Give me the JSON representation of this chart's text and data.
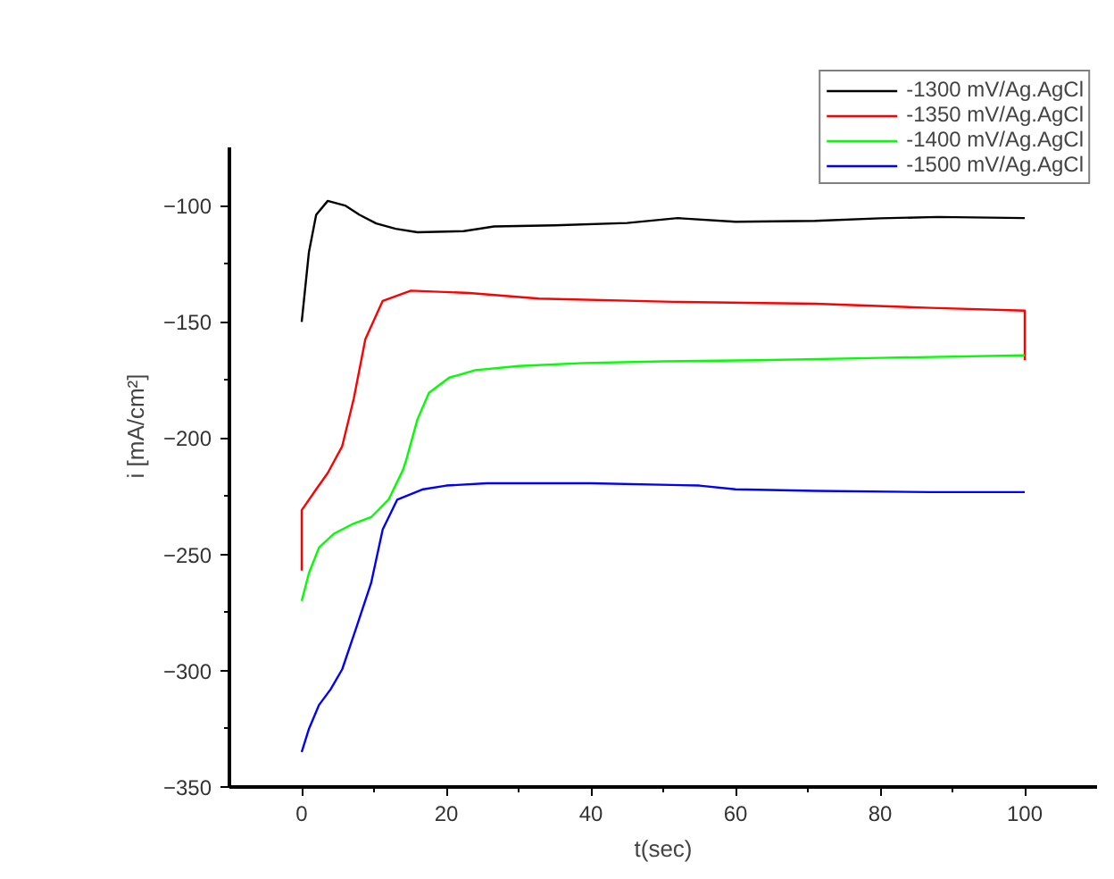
{
  "chart_data": {
    "type": "line",
    "xlabel": "t(sec)",
    "ylabel": "i [mA/cm²]",
    "xlim": [
      -10,
      110
    ],
    "ylim": [
      -350,
      -75
    ],
    "xticks": [
      0,
      20,
      40,
      60,
      80,
      100
    ],
    "yticks": [
      -350,
      -300,
      -250,
      -200,
      -150,
      -100
    ],
    "grid": false,
    "legend": "top right",
    "marker": "none",
    "line_style": "solid",
    "series": [
      {
        "name": "-1300 mV/Ag.AgCl",
        "color": "#000000",
        "x": [
          0,
          1,
          2,
          3.6,
          6,
          8,
          10.3,
          13,
          16,
          22.4,
          26.6,
          35,
          45,
          52,
          60,
          71,
          80,
          88,
          100
        ],
        "values": [
          -150,
          -120,
          -104,
          -98,
          -100,
          -104,
          -107.7,
          -110,
          -111.5,
          -111,
          -109,
          -108.5,
          -107.5,
          -105.4,
          -107,
          -106.6,
          -105.5,
          -104.9,
          -105.4
        ]
      },
      {
        "name": "-1350 mV/Ag.AgCl",
        "color": "#ff0000",
        "x": [
          0,
          0,
          2,
          3.6,
          5.6,
          7.2,
          8.8,
          11.2,
          15.1,
          23.2,
          32.8,
          51.4,
          71,
          87,
          100,
          100
        ],
        "values": [
          -257,
          -231,
          -222,
          -215,
          -203.5,
          -183,
          -157.5,
          -141,
          -136.6,
          -137.6,
          -140,
          -141.4,
          -142.2,
          -144,
          -145.2,
          -166.5
        ]
      },
      {
        "name": "-1400 mV/Ag.AgCl",
        "color": "#00ff00",
        "x": [
          0,
          1,
          2.4,
          4.5,
          7.2,
          9.6,
          12,
          14,
          14.4,
          16,
          17.6,
          20.4,
          24,
          30,
          39,
          50,
          63,
          80,
          100
        ],
        "values": [
          -270,
          -258,
          -247,
          -241,
          -236.7,
          -234,
          -226.5,
          -213.7,
          -210,
          -192,
          -180.5,
          -174,
          -170.8,
          -169,
          -167.7,
          -167,
          -166.5,
          -165.5,
          -164.4
        ]
      },
      {
        "name": "-1500 mV/Ag.AgCl",
        "color": "#0000ff",
        "x": [
          0,
          1,
          2.4,
          4,
          5.6,
          7.5,
          9.6,
          11.2,
          13.2,
          16.8,
          20,
          25.6,
          40,
          55,
          60,
          71,
          87,
          100
        ],
        "values": [
          -335,
          -325,
          -314.7,
          -308,
          -299.4,
          -282,
          -262.3,
          -239.3,
          -226.5,
          -222,
          -220.4,
          -219.4,
          -219.4,
          -220.4,
          -222,
          -222.7,
          -223.2,
          -223.2
        ]
      }
    ]
  }
}
